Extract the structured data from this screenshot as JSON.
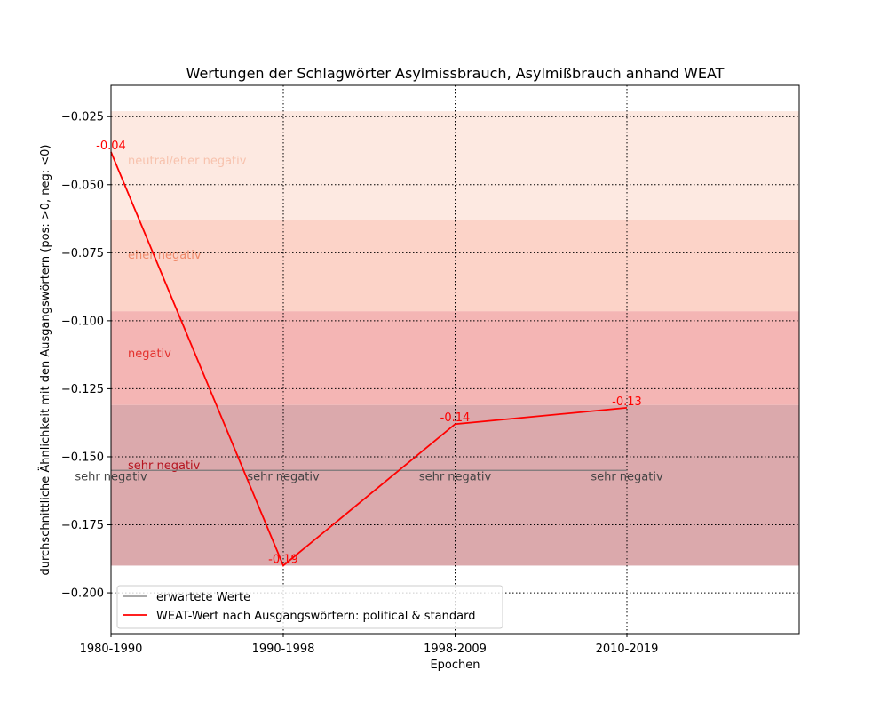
{
  "chart_data": {
    "type": "line",
    "title": "Wertungen der Schlagwörter Asylmissbrauch, Asylmißbrauch anhand WEAT",
    "xlabel": "Epochen",
    "ylabel": "durchschnittliche Ähnlichkeit mit den Ausgangswörtern (pos: >0, neg: <0)",
    "categories": [
      "1980-1990",
      "1990-1998",
      "1998-2009",
      "2010-2019"
    ],
    "ylim": [
      -0.215,
      -0.0135
    ],
    "yticks": [
      -0.025,
      -0.05,
      -0.075,
      -0.1,
      -0.125,
      -0.15,
      -0.175,
      -0.2
    ],
    "ytick_labels": [
      "−0.025",
      "−0.050",
      "−0.075",
      "−0.100",
      "−0.125",
      "−0.150",
      "−0.175",
      "−0.200"
    ],
    "grid": true,
    "legend_position": "lower-left",
    "bands": [
      {
        "label": "neutral/eher negativ",
        "from": -0.063,
        "to": -0.023,
        "color": "#fde9e1",
        "label_color": "#f7c2ad"
      },
      {
        "label": "eher negativ",
        "from": -0.0965,
        "to": -0.063,
        "color": "#fcd3c8",
        "label_color": "#ef8a6a"
      },
      {
        "label": "negativ",
        "from": -0.131,
        "to": -0.0965,
        "color": "#f4b5b4",
        "label_color": "#e3312d"
      },
      {
        "label": "sehr negativ",
        "from": -0.19,
        "to": -0.131,
        "color": "#dba9ac",
        "label_color": "#b5141f"
      }
    ],
    "series": [
      {
        "name": "erwartete Werte",
        "color": "#777777",
        "values": [
          -0.155,
          -0.155,
          -0.155,
          -0.155
        ],
        "point_labels": [
          "sehr negativ",
          "sehr negativ",
          "sehr negativ",
          "sehr negativ"
        ],
        "label_color": "#444444"
      },
      {
        "name": "WEAT-Wert nach Ausgangswörtern: political & standard",
        "color": "#ff0000",
        "values": [
          -0.038,
          -0.19,
          -0.138,
          -0.132
        ],
        "point_labels": [
          "-0.04",
          "-0.19",
          "-0.14",
          "-0.13"
        ],
        "label_color": "#ff0000"
      }
    ]
  }
}
